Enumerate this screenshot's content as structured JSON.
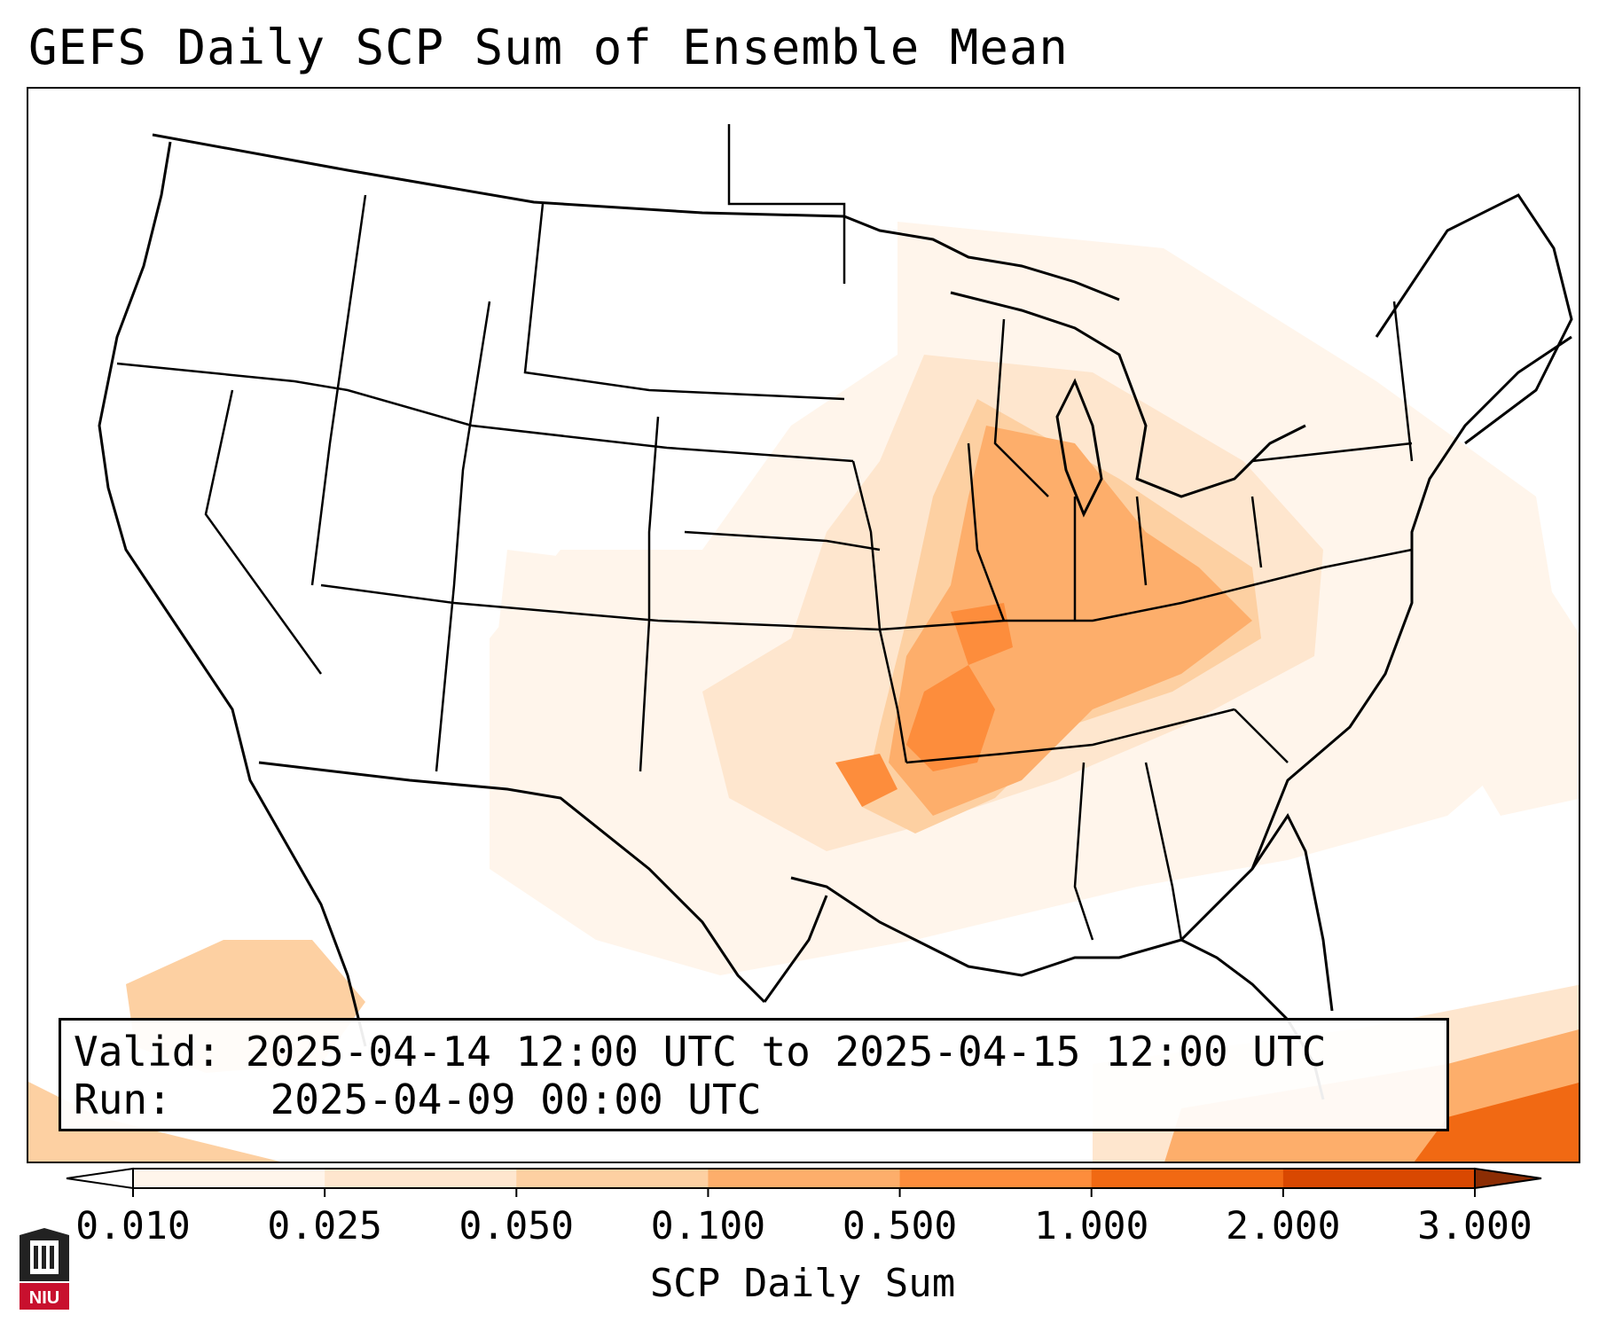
{
  "title": "GEFS Daily SCP Sum of Ensemble Mean",
  "info": {
    "valid_label": "Valid:",
    "valid_value": "2025-04-14 12:00 UTC to 2025-04-15 12:00 UTC",
    "run_label": "Run:",
    "run_value": "2025-04-09 00:00 UTC"
  },
  "colorbar": {
    "label": "SCP Daily Sum",
    "ticks": [
      "0.010",
      "0.025",
      "0.050",
      "0.100",
      "0.500",
      "1.000",
      "2.000",
      "3.000"
    ],
    "colors": [
      "#fff5eb",
      "#fee6ce",
      "#fdd0a2",
      "#fdae6b",
      "#fd8d3c",
      "#f16913",
      "#d94801",
      "#8c2d04"
    ]
  },
  "logo": {
    "text": "NIU"
  }
}
